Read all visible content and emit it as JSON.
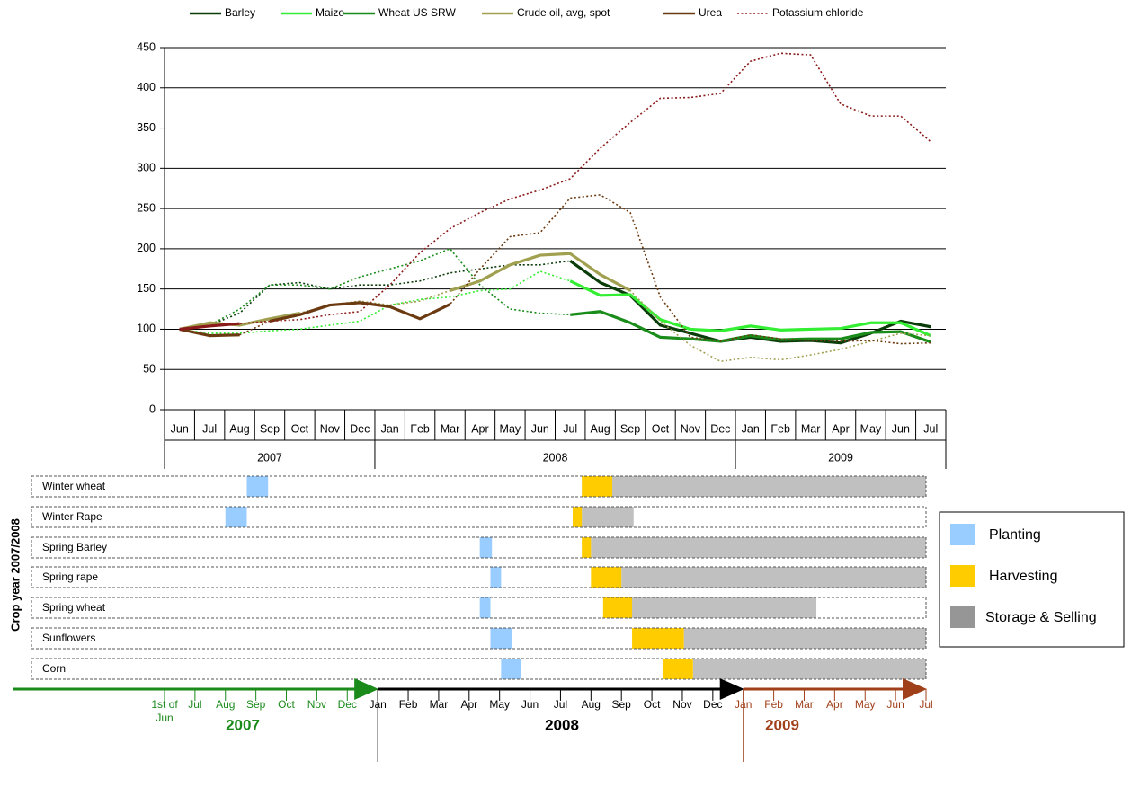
{
  "chart_data": {
    "type": "line",
    "categories": [
      "Jun",
      "Jul",
      "Aug",
      "Sep",
      "Oct",
      "Nov",
      "Dec",
      "Jan",
      "Feb",
      "Mar",
      "Apr",
      "May",
      "Jun",
      "Jul",
      "Aug",
      "Sep",
      "Oct",
      "Nov",
      "Dec",
      "Jan",
      "Feb",
      "Mar",
      "Apr",
      "May",
      "Jun",
      "Jul"
    ],
    "years": [
      "2007",
      "2008",
      "2009"
    ],
    "ylim": [
      0,
      450
    ],
    "yticks": [
      0,
      50,
      100,
      150,
      200,
      250,
      300,
      350,
      400,
      450
    ],
    "grid": true,
    "legend": "top",
    "series": [
      {
        "name": "Barley",
        "color": "#0b3d0b",
        "solid_ranges": [
          [
            13,
            25
          ]
        ],
        "values": [
          100,
          105,
          120,
          155,
          158,
          150,
          155,
          155,
          160,
          170,
          175,
          180,
          180,
          185,
          158,
          142,
          105,
          95,
          85,
          90,
          85,
          86,
          83,
          95,
          110,
          103
        ]
      },
      {
        "name": "Maize",
        "color": "#33ee33",
        "solid_ranges": [
          [
            13,
            25
          ]
        ],
        "values": [
          100,
          95,
          95,
          98,
          100,
          105,
          110,
          130,
          137,
          140,
          148,
          150,
          172,
          160,
          142,
          143,
          112,
          100,
          98,
          104,
          99,
          100,
          101,
          108,
          108,
          92
        ]
      },
      {
        "name": "Wheat US SRW",
        "color": "#1a8c1a",
        "solid_ranges": [
          [
            13,
            25
          ]
        ],
        "values": [
          100,
          105,
          125,
          155,
          155,
          150,
          165,
          175,
          185,
          200,
          155,
          125,
          120,
          118,
          122,
          108,
          90,
          88,
          85,
          92,
          87,
          88,
          88,
          96,
          97,
          84
        ]
      },
      {
        "name": "Crude oil, avg, spot",
        "color": "#a0a050",
        "solid_ranges": [
          [
            0,
            4
          ],
          [
            9,
            15
          ]
        ],
        "values": [
          100,
          108,
          105,
          113,
          120,
          130,
          135,
          130,
          135,
          148,
          160,
          180,
          192,
          194,
          168,
          148,
          110,
          80,
          60,
          65,
          62,
          68,
          75,
          85,
          95,
          92
        ]
      },
      {
        "name": "Urea",
        "color": "#6b3a10",
        "solid_ranges": [
          [
            0,
            2
          ],
          [
            3,
            9
          ]
        ],
        "values": [
          100,
          92,
          93,
          110,
          118,
          130,
          133,
          128,
          113,
          131,
          175,
          215,
          220,
          263,
          267,
          245,
          140,
          90,
          85,
          93,
          88,
          86,
          85,
          86,
          82,
          83
        ]
      },
      {
        "name": "Potassium chloride",
        "color": "#8b1a1a",
        "solid_ranges": [
          [
            0,
            2
          ]
        ],
        "values": [
          100,
          104,
          107,
          110,
          112,
          118,
          122,
          155,
          195,
          225,
          245,
          262,
          273,
          287,
          325,
          357,
          387,
          388,
          393,
          433,
          443,
          441,
          380,
          365,
          365,
          333
        ]
      }
    ]
  },
  "gantt": {
    "y_label": "Crop year 2007/2008",
    "legend": [
      {
        "key": "planting",
        "name": "Planting",
        "color": "#99ccff"
      },
      {
        "key": "harvesting",
        "name": "Harvesting",
        "color": "#ffcc00"
      },
      {
        "key": "storage",
        "name": "Storage & Selling",
        "color": "#c0c0c0"
      }
    ],
    "rows": [
      {
        "name": "Winter wheat",
        "planting": [
          2.7,
          3.4
        ],
        "harvesting": [
          13.7,
          14.7
        ],
        "storage": [
          14.7,
          25
        ]
      },
      {
        "name": "Winter Rape",
        "planting": [
          2.0,
          2.7
        ],
        "harvesting": [
          13.4,
          13.7
        ],
        "storage": [
          13.7,
          15.4
        ]
      },
      {
        "name": "Spring Barley",
        "planting": [
          10.35,
          10.75
        ],
        "harvesting": [
          13.7,
          14.0
        ],
        "storage": [
          14.0,
          25
        ]
      },
      {
        "name": "Spring rape",
        "planting": [
          10.7,
          11.05
        ],
        "harvesting": [
          14.0,
          15.0
        ],
        "storage": [
          15.0,
          25
        ]
      },
      {
        "name": "Spring wheat",
        "planting": [
          10.35,
          10.7
        ],
        "harvesting": [
          14.4,
          15.35
        ],
        "storage": [
          15.35,
          21.4
        ]
      },
      {
        "name": "Sunflowers",
        "planting": [
          10.7,
          11.4
        ],
        "harvesting": [
          15.35,
          17.05
        ],
        "storage": [
          17.05,
          25
        ]
      },
      {
        "name": "Corn",
        "planting": [
          11.05,
          11.7
        ],
        "harvesting": [
          16.35,
          17.35
        ],
        "storage": [
          17.35,
          25
        ]
      }
    ],
    "timeline": [
      {
        "year": "2007",
        "color": "#1a8a1a",
        "labels": [
          "1st of Jun",
          "Jul",
          "Aug",
          "Sep",
          "Oct",
          "Nov",
          "Dec"
        ]
      },
      {
        "year": "2008",
        "color": "#000000",
        "labels": [
          "Jan",
          "Feb",
          "Mar",
          "Apr",
          "May",
          "Jun",
          "Jul",
          "Aug",
          "Sep",
          "Oct",
          "Nov",
          "Dec"
        ]
      },
      {
        "year": "2009",
        "color": "#a0401a",
        "labels": [
          "Jan",
          "Feb",
          "Mar",
          "Apr",
          "May",
          "Jun",
          "Jul"
        ]
      }
    ]
  }
}
